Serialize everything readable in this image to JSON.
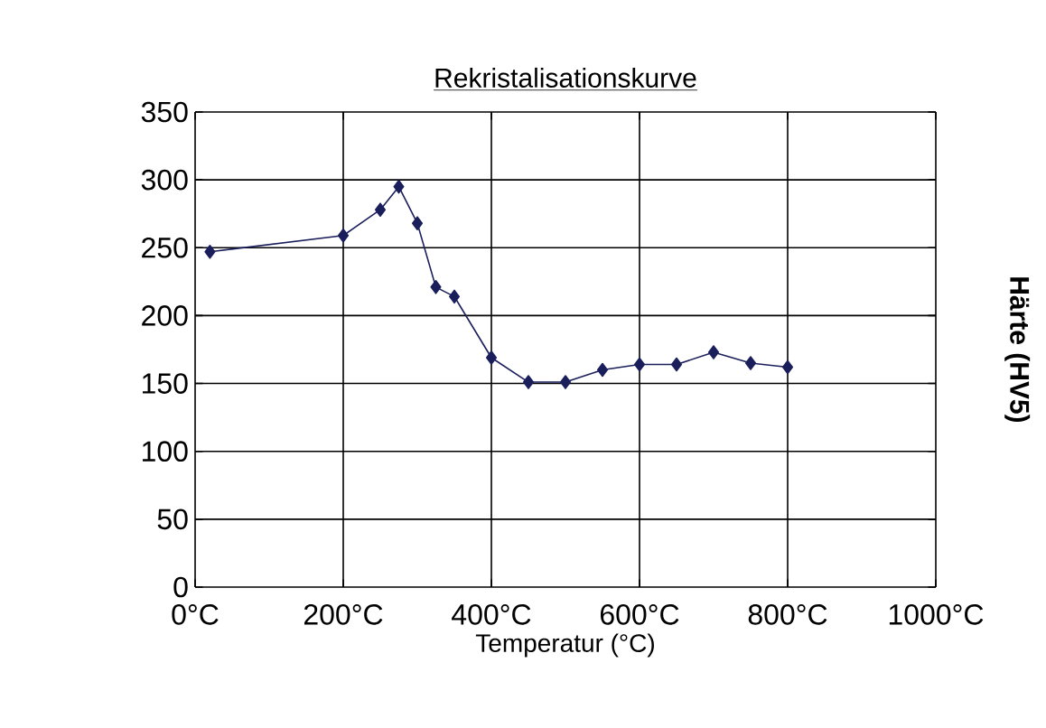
{
  "chart_data": {
    "type": "line",
    "title": "Rekristalisationskurve",
    "xlabel": "Temperatur (°C)",
    "ylabel": "Härte (HV5)",
    "x": [
      20,
      200,
      250,
      275,
      300,
      325,
      350,
      400,
      450,
      500,
      550,
      600,
      650,
      700,
      750,
      800
    ],
    "series": [
      {
        "color": "#1a1f5c",
        "values": [
          247,
          259,
          278,
          295,
          268,
          221,
          214,
          169,
          151,
          151,
          160,
          164,
          164,
          173,
          165,
          162
        ]
      }
    ],
    "xlim": [
      0,
      1000
    ],
    "xticks": [
      {
        "value": 0,
        "label": "0°C"
      },
      {
        "value": 200,
        "label": "200°C"
      },
      {
        "value": 400,
        "label": "400°C"
      },
      {
        "value": 600,
        "label": "600°C"
      },
      {
        "value": 800,
        "label": "800°C"
      },
      {
        "value": 1000,
        "label": "1000°C"
      }
    ],
    "ylim": [
      0,
      350
    ],
    "yticks": [
      0,
      50,
      100,
      150,
      200,
      250,
      300,
      350
    ],
    "grid": true,
    "marker": "diamond",
    "line_style": "solid"
  }
}
